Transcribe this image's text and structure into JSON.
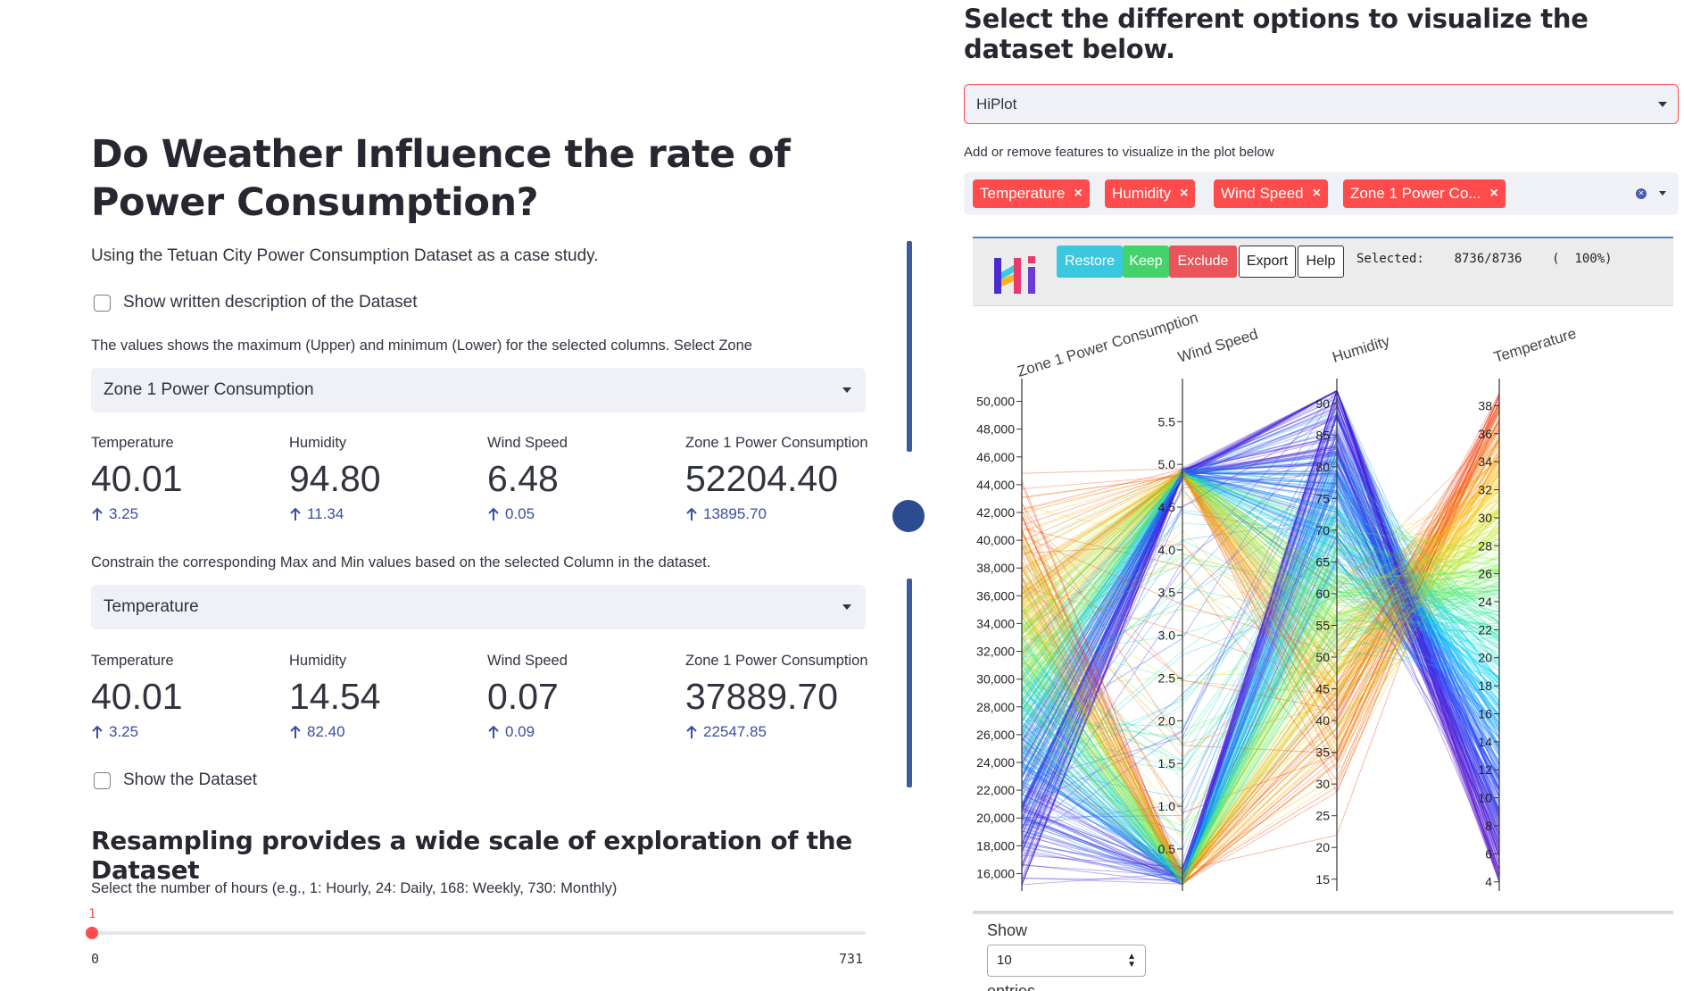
{
  "left": {
    "title": "Do Weather Influence the rate of Power Consumption?",
    "subtitle": "Using the Tetuan City Power Consumption Dataset as a case study.",
    "checkbox_description": "Show written description of the Dataset",
    "help_zone": "The values shows the maximum (Upper) and minimum (Lower) for the selected columns. Select Zone",
    "select_zone": "Zone 1 Power Consumption",
    "metrics_upper": [
      {
        "label": "Temperature",
        "value": "40.01",
        "delta": "3.25"
      },
      {
        "label": "Humidity",
        "value": "94.80",
        "delta": "11.34"
      },
      {
        "label": "Wind Speed",
        "value": "6.48",
        "delta": "0.05"
      },
      {
        "label": "Zone 1 Power Consumption",
        "value": "52204.40",
        "delta": "13895.70"
      }
    ],
    "help_constrain": "Constrain the corresponding Max and Min values based on the selected Column in the dataset.",
    "select_column": "Temperature",
    "metrics_lower": [
      {
        "label": "Temperature",
        "value": "40.01",
        "delta": "3.25"
      },
      {
        "label": "Humidity",
        "value": "14.54",
        "delta": "82.40"
      },
      {
        "label": "Wind Speed",
        "value": "0.07",
        "delta": "0.09"
      },
      {
        "label": "Zone 1 Power Consumption",
        "value": "37889.70",
        "delta": "22547.85"
      }
    ],
    "checkbox_dataset": "Show the Dataset",
    "resampling_title": "Resampling provides a wide scale of exploration of the Dataset",
    "help_hours": "Select the number of hours (e.g., 1: Hourly, 24: Daily, 168: Weekly, 730: Monthly)",
    "slider": {
      "value": "1",
      "min": "0",
      "max": "731"
    }
  },
  "right": {
    "title": "Select the different options to visualize the dataset below.",
    "viz_select": "HiPlot",
    "help_features": "Add or remove features to visualize in the plot below",
    "tags": [
      "Temperature",
      "Humidity",
      "Wind Speed",
      "Zone 1 Power Co..."
    ],
    "hiplot": {
      "buttons": {
        "restore": "Restore",
        "keep": "Keep",
        "exclude": "Exclude",
        "export": "Export",
        "help": "Help"
      },
      "selected_label": "Selected:",
      "selected_count": "8736/8736",
      "selected_pct": "(  100%)",
      "show_label": "Show",
      "entries_value": "10",
      "entries_label": "entries"
    },
    "colors": {
      "accent": "#ff4b4b",
      "metric_delta": "#3a4ea0"
    }
  },
  "chart_data": {
    "type": "parallel-coordinates",
    "axes": [
      {
        "name": "Zone 1 Power Consumption",
        "range": [
          15000,
          51000
        ],
        "ticks": [
          "16,000",
          "18,000",
          "20,000",
          "22,000",
          "24,000",
          "26,000",
          "28,000",
          "30,000",
          "32,000",
          "34,000",
          "36,000",
          "38,000",
          "40,000",
          "42,000",
          "44,000",
          "46,000",
          "48,000",
          "50,000"
        ]
      },
      {
        "name": "Wind Speed",
        "range": [
          0.05,
          5.9
        ],
        "ticks": [
          "0.5",
          "1.0",
          "1.5",
          "2.0",
          "2.5",
          "3.0",
          "3.5",
          "4.0",
          "4.5",
          "5.0",
          "5.5"
        ]
      },
      {
        "name": "Humidity",
        "range": [
          13.7,
          92.5
        ],
        "ticks": [
          "15",
          "20",
          "25",
          "30",
          "35",
          "40",
          "45",
          "50",
          "55",
          "60",
          "65",
          "70",
          "75",
          "80",
          "85",
          "90"
        ]
      },
      {
        "name": "Temperature",
        "range": [
          3.6,
          39.3
        ],
        "ticks": [
          "4",
          "6",
          "8",
          "10",
          "12",
          "14",
          "16",
          "18",
          "20",
          "22",
          "24",
          "26",
          "28",
          "30",
          "32",
          "34",
          "36",
          "38"
        ]
      }
    ],
    "color_by": "Temperature",
    "selected": "8736/8736"
  }
}
